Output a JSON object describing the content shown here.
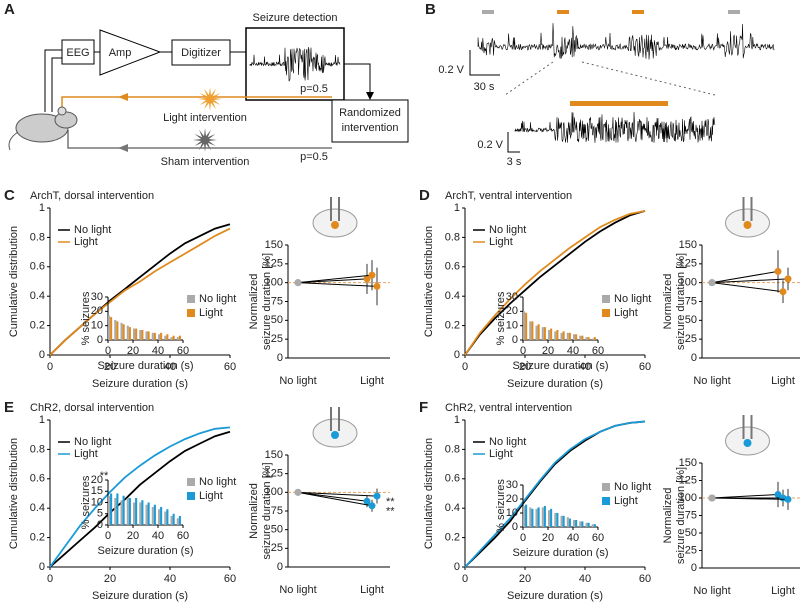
{
  "diagram": {
    "panel": "A",
    "eeg": "EEG",
    "amp": "Amp",
    "digitizer": "Digitizer",
    "detection": "Seizure detection",
    "randomized": [
      "Randomized",
      "intervention"
    ],
    "light": "Light intervention",
    "sham": "Sham intervention",
    "p_light": "p=0.5",
    "p_sham": "p=0.5"
  },
  "trace": {
    "panel": "B",
    "scale_v": "0.2 V",
    "scale_t": "30 s",
    "zoom_v": "0.2 V",
    "zoom_t": "3 s"
  },
  "chart_data": [
    {
      "type": "line",
      "panel": "C",
      "title": "ArchT, dorsal intervention",
      "x": [
        0,
        5,
        10,
        15,
        20,
        25,
        30,
        35,
        40,
        45,
        50,
        55,
        60
      ],
      "series": [
        {
          "name": "No light",
          "color": "#000000",
          "values": [
            0,
            0.1,
            0.19,
            0.28,
            0.37,
            0.45,
            0.53,
            0.61,
            0.69,
            0.76,
            0.81,
            0.86,
            0.89
          ]
        },
        {
          "name": "Light",
          "color": "#e08a1e",
          "values": [
            0,
            0.1,
            0.19,
            0.28,
            0.36,
            0.44,
            0.5,
            0.57,
            0.63,
            0.69,
            0.75,
            0.81,
            0.86
          ]
        }
      ],
      "xlim": [
        0,
        60
      ],
      "ylim": [
        0,
        1
      ],
      "xticks": [
        0,
        20,
        40,
        60
      ],
      "yticks": [
        0,
        0.2,
        0.4,
        0.6,
        0.8,
        1
      ],
      "xlabel": "Seizure duration (s)",
      "ylabel": "Cumulative distribution",
      "legend": "upper left"
    },
    {
      "type": "bar",
      "x": [
        0,
        5,
        10,
        15,
        20,
        25,
        30,
        35,
        40,
        45,
        50,
        55
      ],
      "series": [
        {
          "name": "No light",
          "color": "#aaaaaa",
          "values": [
            17,
            14,
            12,
            10,
            8,
            7,
            6,
            5,
            4,
            3,
            2,
            2
          ]
        },
        {
          "name": "Light",
          "color": "#e08a1e",
          "values": [
            16,
            13,
            11,
            9,
            8,
            7,
            6,
            5,
            5,
            4,
            3,
            3
          ]
        }
      ],
      "xlim": [
        0,
        60
      ],
      "ylim": [
        0,
        30
      ],
      "xticks": [
        0,
        20,
        40,
        60
      ],
      "yticks": [
        0,
        10,
        20,
        30
      ],
      "xlabel": "Seizure duration (s)",
      "ylabel": "% seizures",
      "legend": "upper right"
    },
    {
      "type": "dot",
      "categories": [
        "No light",
        "Light"
      ],
      "colors": [
        "#aaaaaa",
        "#e08a1e"
      ],
      "series": [
        {
          "values": [
            100,
            105
          ],
          "errors": [
            null,
            20
          ]
        },
        {
          "values": [
            100,
            110
          ],
          "errors": [
            null,
            20
          ]
        },
        {
          "values": [
            100,
            95
          ],
          "errors": [
            null,
            25
          ]
        }
      ],
      "ylim": [
        0,
        150
      ],
      "yticks": [
        0,
        25,
        50,
        75,
        100,
        125,
        150
      ],
      "ylabel": [
        "Normalized",
        "seizure duration [%]"
      ]
    },
    {
      "type": "line",
      "panel": "D",
      "title": "ArchT, ventral intervention",
      "x": [
        0,
        5,
        10,
        15,
        20,
        25,
        30,
        35,
        40,
        45,
        50,
        55,
        60
      ],
      "series": [
        {
          "name": "No light",
          "color": "#000000",
          "values": [
            0,
            0.14,
            0.25,
            0.35,
            0.44,
            0.53,
            0.61,
            0.69,
            0.77,
            0.84,
            0.9,
            0.95,
            0.98
          ]
        },
        {
          "name": "Light",
          "color": "#e08a1e",
          "values": [
            0,
            0.15,
            0.27,
            0.38,
            0.48,
            0.57,
            0.65,
            0.73,
            0.8,
            0.87,
            0.92,
            0.96,
            0.98
          ]
        }
      ],
      "xlim": [
        0,
        60
      ],
      "ylim": [
        0,
        1
      ],
      "xticks": [
        0,
        20,
        40,
        60
      ],
      "yticks": [
        0,
        0.2,
        0.4,
        0.6,
        0.8,
        1
      ],
      "xlabel": "Seizure duration (s)",
      "ylabel": "Cumulative distribution",
      "legend": "upper left"
    },
    {
      "type": "bar",
      "x": [
        0,
        5,
        10,
        15,
        20,
        25,
        30,
        35,
        40,
        45,
        50,
        55
      ],
      "series": [
        {
          "name": "No light",
          "color": "#aaaaaa",
          "values": [
            20,
            13,
            10,
            9,
            7,
            6,
            5,
            5,
            4,
            3,
            2,
            1
          ]
        },
        {
          "name": "Light",
          "color": "#e08a1e",
          "values": [
            19,
            13,
            11,
            9,
            8,
            7,
            6,
            5,
            4,
            3,
            2,
            2
          ]
        }
      ],
      "xlim": [
        0,
        60
      ],
      "ylim": [
        0,
        30
      ],
      "xticks": [
        0,
        20,
        40,
        60
      ],
      "yticks": [
        0,
        10,
        20,
        30
      ],
      "xlabel": "Seizure duration (s)",
      "ylabel": "% seizures",
      "legend": "upper right"
    },
    {
      "type": "dot",
      "categories": [
        "No light",
        "Light"
      ],
      "colors": [
        "#aaaaaa",
        "#e08a1e"
      ],
      "series": [
        {
          "values": [
            100,
            115
          ],
          "errors": [
            null,
            28
          ]
        },
        {
          "values": [
            100,
            88
          ],
          "errors": [
            null,
            15
          ]
        },
        {
          "values": [
            100,
            105
          ],
          "errors": [
            null,
            15
          ]
        }
      ],
      "ylim": [
        0,
        150
      ],
      "yticks": [
        0,
        25,
        50,
        75,
        100,
        125,
        150
      ],
      "ylabel": [
        "Normalized",
        "seizure duration [%]"
      ]
    },
    {
      "type": "line",
      "panel": "E",
      "title": "ChR2, dorsal intervention",
      "x": [
        0,
        5,
        10,
        15,
        20,
        25,
        30,
        35,
        40,
        45,
        50,
        55,
        60
      ],
      "series": [
        {
          "name": "No light",
          "color": "#000000",
          "values": [
            0,
            0.09,
            0.18,
            0.27,
            0.37,
            0.46,
            0.56,
            0.64,
            0.72,
            0.79,
            0.84,
            0.89,
            0.92
          ]
        },
        {
          "name": "Light",
          "color": "#1a9ad6",
          "values": [
            0,
            0.14,
            0.28,
            0.4,
            0.51,
            0.61,
            0.69,
            0.76,
            0.82,
            0.87,
            0.91,
            0.94,
            0.95
          ]
        }
      ],
      "xlim": [
        0,
        60
      ],
      "ylim": [
        0,
        1
      ],
      "xticks": [
        0,
        20,
        40,
        60
      ],
      "yticks": [
        0,
        0.2,
        0.4,
        0.6,
        0.8,
        1
      ],
      "xlabel": "Seizure duration (s)",
      "ylabel": "Cumulative distribution",
      "legend": "upper left",
      "annotations": [
        "**"
      ]
    },
    {
      "type": "bar",
      "x": [
        0,
        5,
        10,
        15,
        20,
        25,
        30,
        35,
        40,
        45,
        50,
        55
      ],
      "series": [
        {
          "name": "No light",
          "color": "#aaaaaa",
          "values": [
            13,
            12,
            11,
            12,
            10,
            10,
            9,
            8,
            7,
            6,
            4,
            3
          ]
        },
        {
          "name": "Light",
          "color": "#1a9ad6",
          "values": [
            14,
            14,
            13,
            12,
            12,
            11,
            10,
            9,
            8,
            7,
            5,
            4
          ]
        }
      ],
      "xlim": [
        0,
        60
      ],
      "ylim": [
        0,
        20
      ],
      "xticks": [
        0,
        20,
        40,
        60
      ],
      "yticks": [
        0,
        5,
        10,
        15,
        20
      ],
      "xlabel": "Seizure duration (s)",
      "ylabel": "% seizures",
      "legend": "upper right"
    },
    {
      "type": "dot",
      "categories": [
        "No light",
        "Light"
      ],
      "colors": [
        "#aaaaaa",
        "#1a9ad6"
      ],
      "series": [
        {
          "values": [
            100,
            88
          ],
          "errors": [
            null,
            8
          ]
        },
        {
          "values": [
            100,
            82
          ],
          "errors": [
            null,
            8
          ]
        },
        {
          "values": [
            100,
            95
          ],
          "errors": [
            null,
            10
          ]
        }
      ],
      "ylim": [
        0,
        150
      ],
      "yticks": [
        0,
        25,
        50,
        75,
        100,
        125,
        150
      ],
      "ylabel": [
        "Normalized",
        "seizure duration [%]"
      ],
      "annotations": [
        "**",
        "**"
      ]
    },
    {
      "type": "line",
      "panel": "F",
      "title": "ChR2, ventral intervention",
      "x": [
        0,
        5,
        10,
        15,
        20,
        25,
        30,
        35,
        40,
        45,
        50,
        55,
        60
      ],
      "series": [
        {
          "name": "No light",
          "color": "#000000",
          "values": [
            0,
            0.1,
            0.2,
            0.31,
            0.45,
            0.58,
            0.7,
            0.79,
            0.86,
            0.92,
            0.96,
            0.98,
            0.99
          ]
        },
        {
          "name": "Light",
          "color": "#1a9ad6",
          "values": [
            0,
            0.11,
            0.22,
            0.33,
            0.46,
            0.59,
            0.71,
            0.8,
            0.87,
            0.92,
            0.96,
            0.98,
            0.99
          ]
        }
      ],
      "xlim": [
        0,
        60
      ],
      "ylim": [
        0,
        1
      ],
      "xticks": [
        0,
        20,
        40,
        60
      ],
      "yticks": [
        0,
        0.2,
        0.4,
        0.6,
        0.8,
        1
      ],
      "xlabel": "Seizure duration (s)",
      "ylabel": "Cumulative distribution",
      "legend": "upper left"
    },
    {
      "type": "bar",
      "x": [
        0,
        5,
        10,
        15,
        20,
        25,
        30,
        35,
        40,
        45,
        50,
        55
      ],
      "series": [
        {
          "name": "No light",
          "color": "#aaaaaa",
          "values": [
            15,
            14,
            13,
            14,
            12,
            10,
            8,
            7,
            5,
            4,
            3,
            2
          ]
        },
        {
          "name": "Light",
          "color": "#1a9ad6",
          "values": [
            16,
            13,
            14,
            15,
            13,
            10,
            8,
            6,
            5,
            4,
            3,
            2
          ]
        }
      ],
      "xlim": [
        0,
        60
      ],
      "ylim": [
        0,
        30
      ],
      "xticks": [
        0,
        20,
        40,
        60
      ],
      "yticks": [
        0,
        10,
        20,
        30
      ],
      "xlabel": "Seizure duration (s)",
      "ylabel": "% seizures",
      "legend": "upper right"
    },
    {
      "type": "dot",
      "categories": [
        "No light",
        "Light"
      ],
      "colors": [
        "#aaaaaa",
        "#1a9ad6"
      ],
      "series": [
        {
          "values": [
            100,
            105
          ],
          "errors": [
            null,
            18
          ]
        },
        {
          "values": [
            100,
            100
          ],
          "errors": [
            null,
            12
          ]
        },
        {
          "values": [
            100,
            98
          ],
          "errors": [
            null,
            15
          ]
        }
      ],
      "ylim": [
        0,
        150
      ],
      "yticks": [
        0,
        25,
        50,
        75,
        100,
        125,
        150
      ],
      "ylabel": [
        "Normalized",
        "seizure duration [%]"
      ]
    }
  ]
}
